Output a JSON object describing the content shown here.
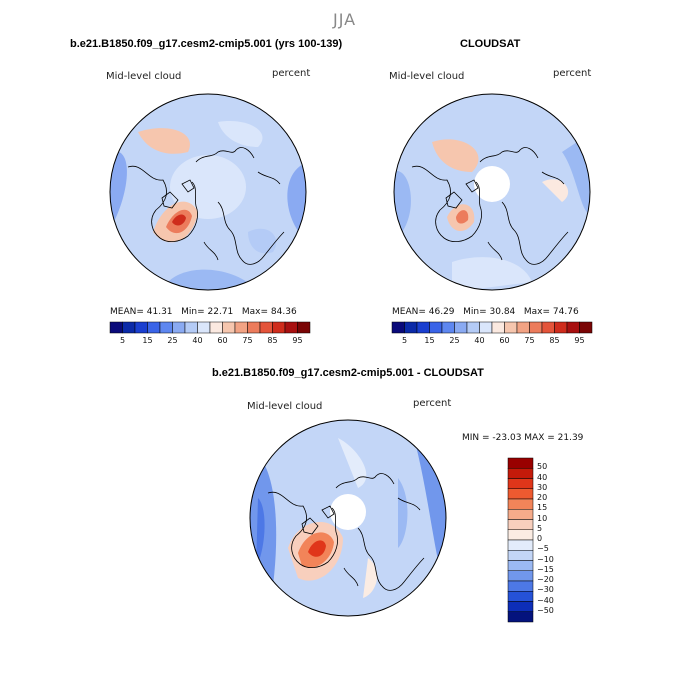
{
  "figure": {
    "season": "JJA",
    "panels": [
      {
        "id": "model",
        "title": "b.e21.B1850.f09_g17.cesm2-cmip5.001 (yrs 100-139)",
        "variable": "Mid-level cloud",
        "units": "percent",
        "stats": {
          "mean_label": "MEAN=",
          "mean": "41.31",
          "min_label": "Min=",
          "min": "22.71",
          "max_label": "Max=",
          "max": "84.36"
        }
      },
      {
        "id": "obs",
        "title": "CLOUDSAT",
        "variable": "Mid-level cloud",
        "units": "percent",
        "stats": {
          "mean_label": "MEAN=",
          "mean": "46.29",
          "min_label": "Min=",
          "min": "30.84",
          "max_label": "Max=",
          "max": "74.76"
        }
      },
      {
        "id": "diff",
        "title": "b.e21.B1850.f09_g17.cesm2-cmip5.001 - CLOUDSAT",
        "variable": "Mid-level cloud",
        "units": "percent",
        "stats_text": "MIN = -23.03 MAX =  21.39"
      }
    ],
    "abs_colorbar": {
      "colors": [
        "#0a0a7a",
        "#0b2aa8",
        "#1a3fd0",
        "#3a64e8",
        "#5e87f0",
        "#8aaaf2",
        "#b4cbf6",
        "#dae6fb",
        "#fbe9e0",
        "#f6c6ae",
        "#f2a384",
        "#ec7c5c",
        "#e4543a",
        "#cf2c1c",
        "#a81010",
        "#7a0505"
      ],
      "tick_labels": [
        "5",
        "15",
        "25",
        "40",
        "60",
        "75",
        "85",
        "95"
      ]
    },
    "diff_colorbar": {
      "colors_top_to_bottom": [
        "#990000",
        "#c41a0a",
        "#e0361a",
        "#ee5a30",
        "#f28459",
        "#f5ab8a",
        "#f8cfbd",
        "#fbece3",
        "#e3ecfb",
        "#c3d6f7",
        "#9bb9f3",
        "#7197ec",
        "#4d78e6",
        "#2552d8",
        "#0d2eb8",
        "#04137d"
      ],
      "tick_labels_top_to_bottom": [
        "50",
        "40",
        "30",
        "20",
        "15",
        "10",
        "5",
        "0",
        "−5",
        "−10",
        "−15",
        "−20",
        "−30",
        "−40",
        "−50"
      ]
    }
  }
}
